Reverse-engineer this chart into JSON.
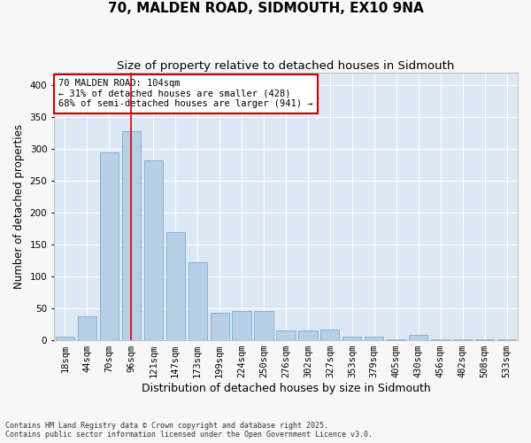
{
  "title": "70, MALDEN ROAD, SIDMOUTH, EX10 9NA",
  "subtitle": "Size of property relative to detached houses in Sidmouth",
  "xlabel": "Distribution of detached houses by size in Sidmouth",
  "ylabel": "Number of detached properties",
  "categories": [
    "18sqm",
    "44sqm",
    "70sqm",
    "96sqm",
    "121sqm",
    "147sqm",
    "173sqm",
    "199sqm",
    "224sqm",
    "250sqm",
    "276sqm",
    "302sqm",
    "327sqm",
    "353sqm",
    "379sqm",
    "405sqm",
    "430sqm",
    "456sqm",
    "482sqm",
    "508sqm",
    "533sqm"
  ],
  "values": [
    5,
    38,
    295,
    328,
    282,
    170,
    122,
    43,
    46,
    46,
    15,
    15,
    17,
    6,
    6,
    1,
    8,
    1,
    2,
    1,
    1
  ],
  "bar_color": "#b8cfe8",
  "bar_edge_color": "#7aaad0",
  "highlight_bar_index": 3,
  "highlight_line_color": "#cc0000",
  "annotation_text": "70 MALDEN ROAD: 104sqm\n← 31% of detached houses are smaller (428)\n68% of semi-detached houses are larger (941) →",
  "annotation_box_color": "#ffffff",
  "annotation_box_edge_color": "#cc0000",
  "ylim": [
    0,
    420
  ],
  "yticks": [
    0,
    50,
    100,
    150,
    200,
    250,
    300,
    350,
    400
  ],
  "fig_background_color": "#f7f7f7",
  "axes_background_color": "#dde8f5",
  "grid_color": "#ffffff",
  "footer_text": "Contains HM Land Registry data © Crown copyright and database right 2025.\nContains public sector information licensed under the Open Government Licence v3.0.",
  "title_fontsize": 11,
  "subtitle_fontsize": 9.5,
  "xlabel_fontsize": 9,
  "ylabel_fontsize": 8.5,
  "tick_fontsize": 7.5,
  "annotation_fontsize": 7.5,
  "footer_fontsize": 6
}
